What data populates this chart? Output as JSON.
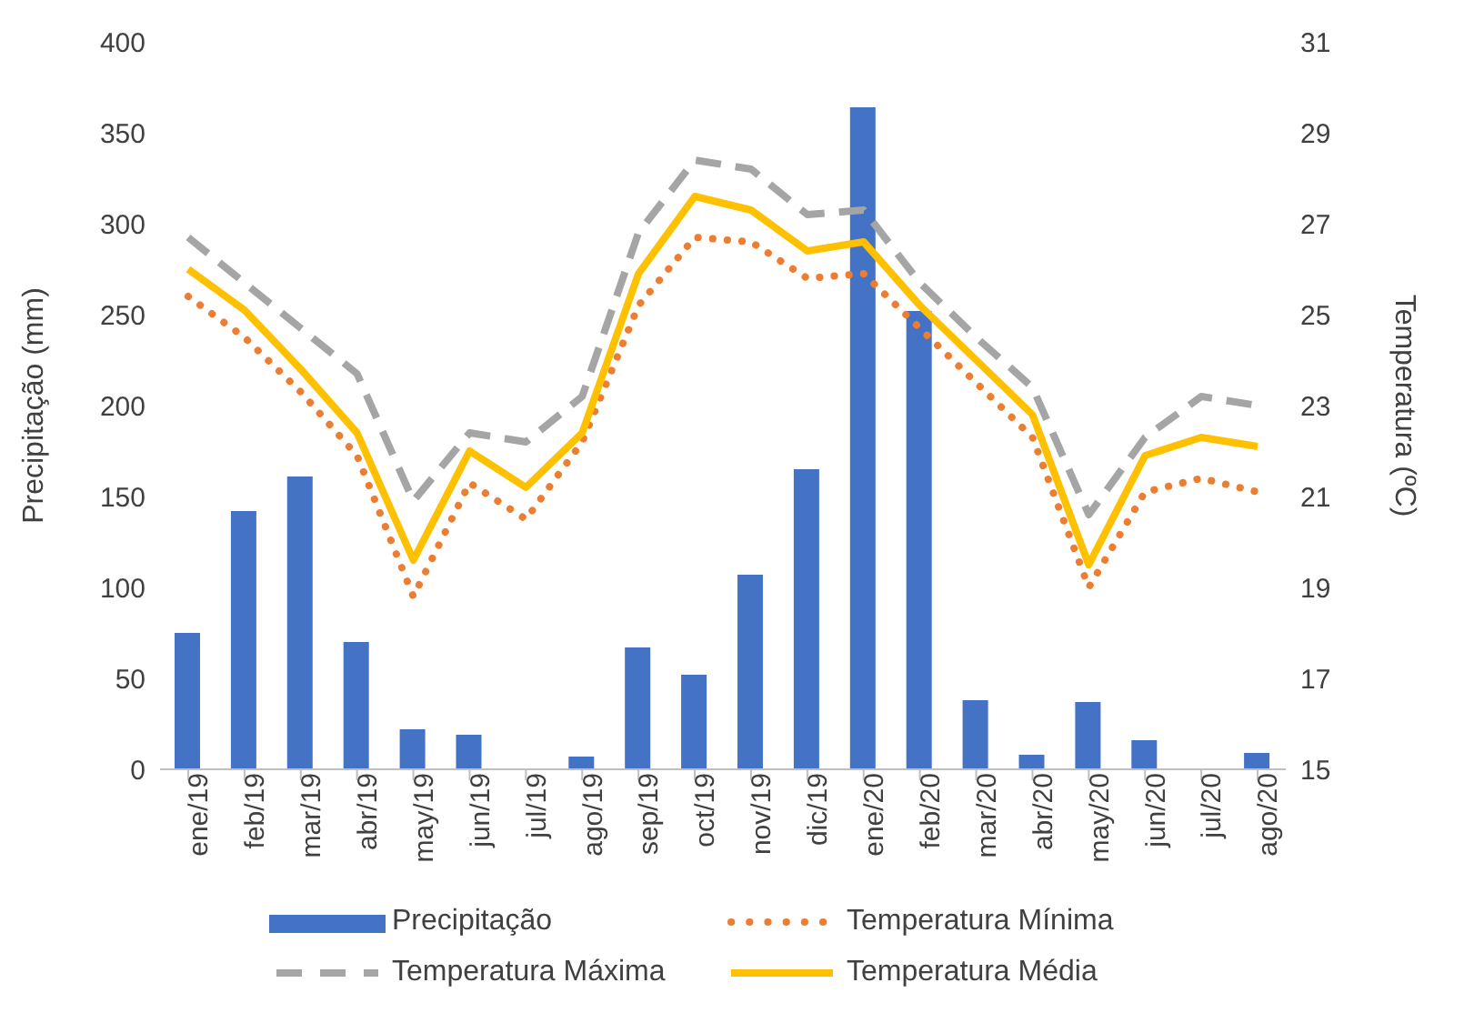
{
  "chart_data": {
    "type": "bar",
    "ylabel": "Precipitação (mm)",
    "y2label": "Temperatura (ºC)",
    "categories": [
      "ene/19",
      "feb/19",
      "mar/19",
      "abr/19",
      "may/19",
      "jun/19",
      "jul/19",
      "ago/19",
      "sep/19",
      "oct/19",
      "nov/19",
      "dic/19",
      "ene/20",
      "feb/20",
      "mar/20",
      "abr/20",
      "may/20",
      "jun/20",
      "jul/20",
      "ago/20"
    ],
    "series": [
      {
        "name": "Precipitação",
        "color": "#4472c4",
        "values": [
          75,
          142,
          161,
          70,
          22,
          19,
          0,
          7,
          67,
          52,
          107,
          165,
          364,
          252,
          38,
          8,
          37,
          16,
          0,
          9
        ]
      },
      {
        "name": "Temperatura Mínima",
        "type": "line",
        "axis": "y2",
        "color": "#ed7d31",
        "line_style": "dotted",
        "values": [
          25.4,
          24.5,
          23.3,
          21.9,
          18.8,
          21.3,
          20.5,
          22.2,
          25.2,
          26.7,
          26.6,
          25.8,
          25.9,
          24.7,
          23.5,
          22.3,
          19.0,
          21.1,
          21.4,
          21.1
        ]
      },
      {
        "name": "Temperatura Máxima",
        "type": "line",
        "axis": "y2",
        "color": "#a5a5a5",
        "line_style": "dashed",
        "values": [
          26.7,
          25.7,
          24.7,
          23.7,
          20.9,
          22.4,
          22.2,
          23.2,
          26.8,
          28.4,
          28.2,
          27.2,
          27.3,
          25.7,
          24.5,
          23.4,
          20.6,
          22.3,
          23.2,
          23.0
        ]
      },
      {
        "name": "Temperatura Média",
        "type": "line",
        "axis": "y2",
        "color": "#ffc000",
        "line_style": "solid",
        "values": [
          26.0,
          25.1,
          23.8,
          22.4,
          19.6,
          22.0,
          21.2,
          22.4,
          25.9,
          27.6,
          27.3,
          26.4,
          26.6,
          25.2,
          24.0,
          22.8,
          19.5,
          21.9,
          22.3,
          22.1
        ]
      }
    ],
    "ylim": [
      0,
      400
    ],
    "yticks": [
      0,
      50,
      100,
      150,
      200,
      250,
      300,
      350,
      400
    ],
    "y2lim": [
      15,
      31
    ],
    "y2ticks": [
      15,
      17,
      19,
      21,
      23,
      25,
      27,
      29,
      31
    ],
    "grid": false,
    "legend": "bottom",
    "marker": "none"
  }
}
